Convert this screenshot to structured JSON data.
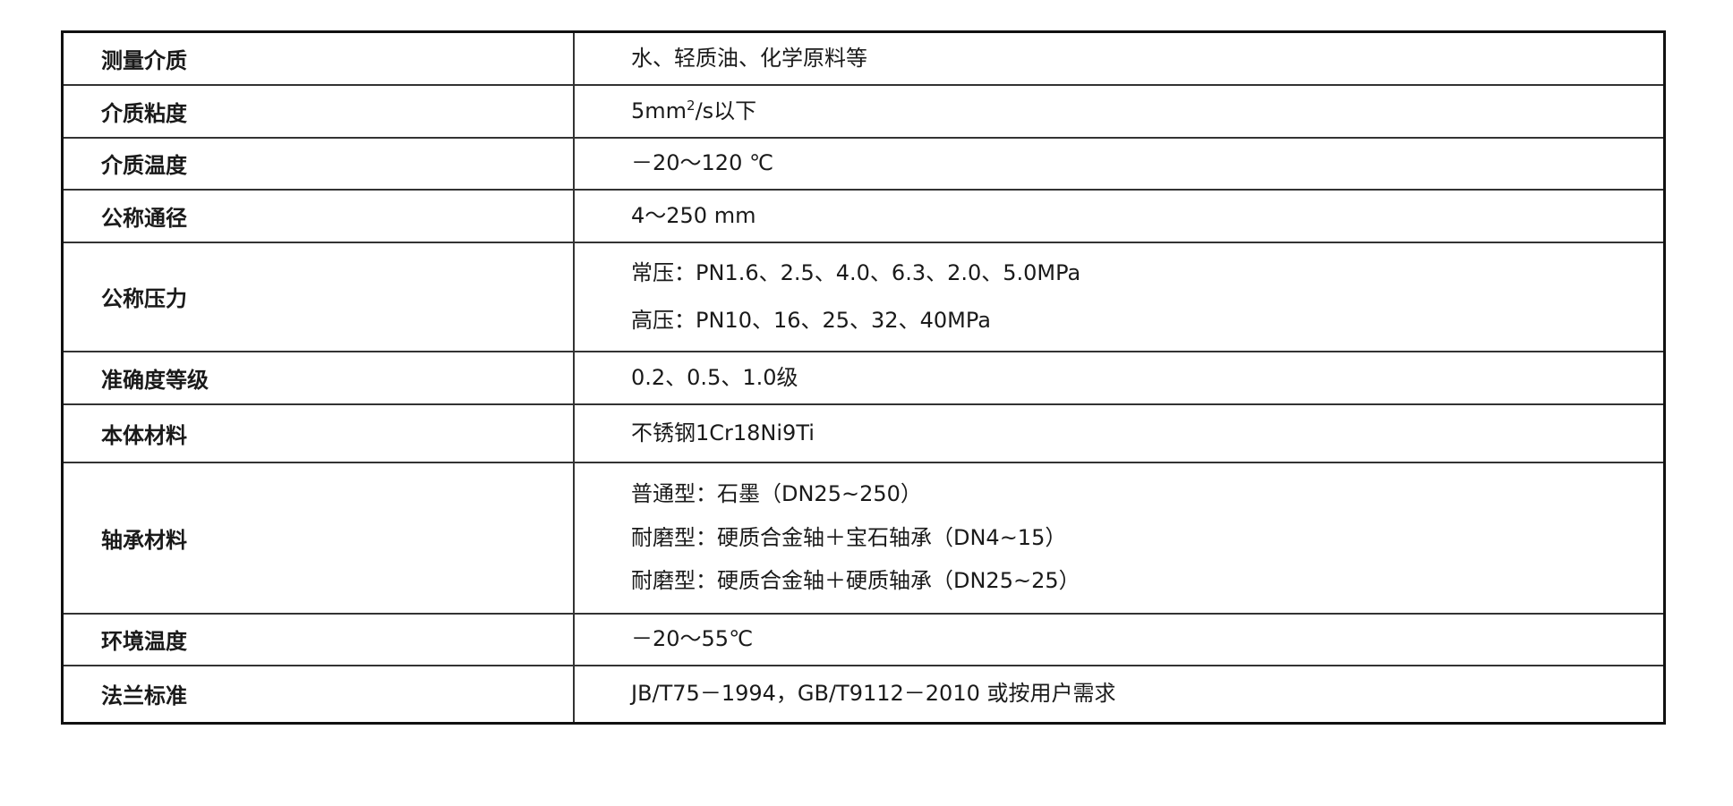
{
  "rows": [
    {
      "label": "测量介质",
      "values": [
        "水、轻质油、化学原料等"
      ]
    },
    {
      "label": "介质粘度",
      "value_prefix": "5mm",
      "value_sup": "2",
      "value_suffix": "/s以下"
    },
    {
      "label": "介质温度",
      "values": [
        "－20～120 ℃"
      ]
    },
    {
      "label": "公称通径",
      "values": [
        "4～250 mm"
      ]
    },
    {
      "label": "公称压力",
      "values": [
        "常压：PN1.6、2.5、4.0、6.3、2.0、5.0MPa",
        "高压：PN10、16、25、32、40MPa"
      ]
    },
    {
      "label": "准确度等级",
      "values": [
        "0.2、0.5、1.0级"
      ]
    },
    {
      "label": "本体材料",
      "values": [
        "不锈钢1Cr18Ni9Ti"
      ]
    },
    {
      "label": "轴承材料",
      "values": [
        "普通型：石墨（DN25~250）",
        "耐磨型：硬质合金轴＋宝石轴承（DN4~15）",
        "耐磨型：硬质合金轴＋硬质轴承（DN25~25）"
      ]
    },
    {
      "label": "环境温度",
      "values": [
        "－20～55℃"
      ]
    },
    {
      "label": "法兰标准",
      "values": [
        "JB/T75－1994，GB/T9112－2010 或按用户需求"
      ]
    }
  ]
}
